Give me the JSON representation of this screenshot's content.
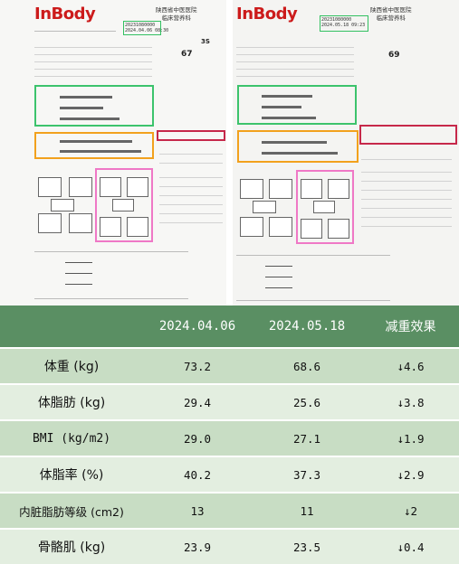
{
  "reports": {
    "left": {
      "logo": "InBody",
      "hospital": [
        "陕西省中医医院",
        "临床营养科"
      ],
      "date_lines": [
        "20231080000",
        "2024.04.06 08:30"
      ],
      "weight": "67",
      "id_mark": "3S"
    },
    "right": {
      "logo": "InBody",
      "hospital": [
        "陕西省中医医院",
        "临床营养科"
      ],
      "date_lines": [
        "20231080000",
        "2024.05.18 09:23"
      ],
      "weight": "69"
    }
  },
  "table": {
    "headers": [
      "",
      "2024.04.06",
      "2024.05.18",
      "减重效果"
    ],
    "rows": [
      {
        "item": "体重 (kg)",
        "before": "73.2",
        "after": "68.6",
        "effect": "↓4.6"
      },
      {
        "item": "体脂肪 (kg)",
        "before": "29.4",
        "after": "25.6",
        "effect": "↓3.8"
      },
      {
        "item": "BMI (kg/m2)",
        "before": "29.0",
        "after": "27.1",
        "effect": "↓1.9"
      },
      {
        "item": "体脂率 (%)",
        "before": "40.2",
        "after": "37.3",
        "effect": "↓2.9"
      },
      {
        "item": "内脏脂肪等级 (cm2)",
        "before": "13",
        "after": "11",
        "effect": "↓2"
      },
      {
        "item": "骨骼肌 (kg)",
        "before": "23.9",
        "after": "23.5",
        "effect": "↓0.4"
      }
    ]
  }
}
